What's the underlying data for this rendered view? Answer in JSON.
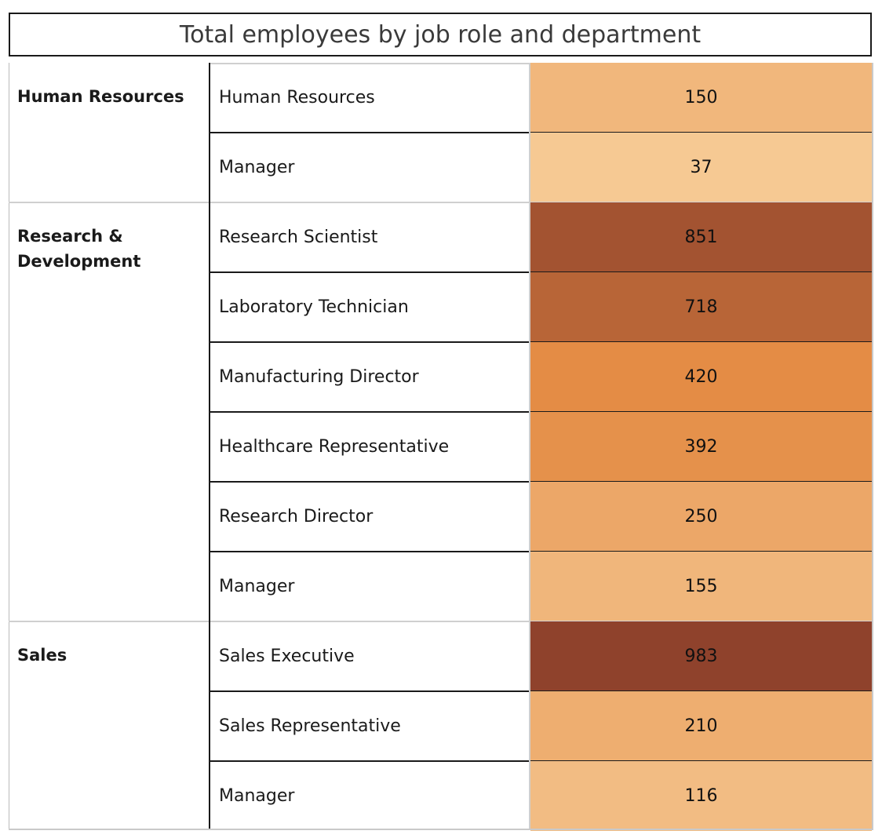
{
  "title": "Total employees by job role and department",
  "colors": {
    "scale_low": "#f6c993",
    "scale_mid": "#e38a42",
    "scale_high": "#8f422c"
  },
  "chart_data": {
    "type": "heatmap",
    "title": "Total employees by job role and department",
    "groups": [
      {
        "department": "Human Resources",
        "roles": [
          {
            "role": "Human Resources",
            "value": 150
          },
          {
            "role": "Manager",
            "value": 37
          }
        ]
      },
      {
        "department": "Research & Development",
        "roles": [
          {
            "role": "Research Scientist",
            "value": 851
          },
          {
            "role": "Laboratory Technician",
            "value": 718
          },
          {
            "role": "Manufacturing Director",
            "value": 420
          },
          {
            "role": "Healthcare Representative",
            "value": 392
          },
          {
            "role": "Research Director",
            "value": 250
          },
          {
            "role": "Manager",
            "value": 155
          }
        ]
      },
      {
        "department": "Sales",
        "roles": [
          {
            "role": "Sales Executive",
            "value": 983
          },
          {
            "role": "Sales Representative",
            "value": 210
          },
          {
            "role": "Manager",
            "value": 116
          }
        ]
      }
    ],
    "color_range": [
      37,
      983
    ]
  }
}
